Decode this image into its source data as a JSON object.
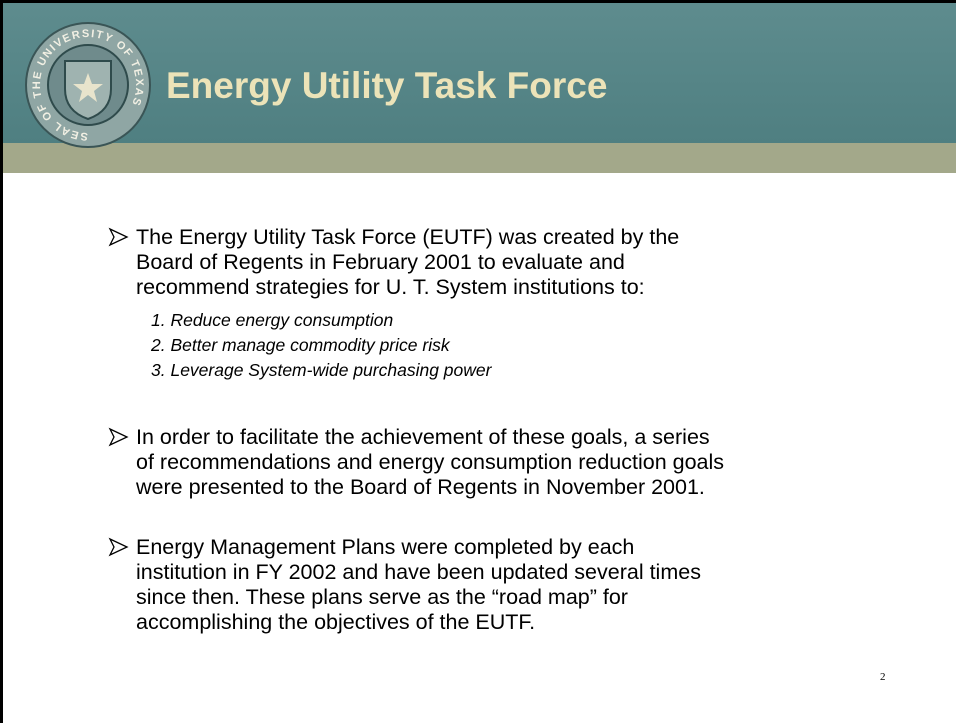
{
  "header": {
    "title": "Energy Utility Task Force",
    "seal_text": "SEAL OF THE UNIVERSITY OF TEXAS"
  },
  "bullets": [
    {
      "lines": [
        "The Energy Utility Task Force (EUTF) was created by the",
        "Board of Regents in February 2001 to evaluate and",
        "recommend strategies for U. T. System institutions to:"
      ],
      "items": [
        "1.  Reduce energy consumption",
        "2.  Better manage commodity price risk",
        "3.  Leverage System-wide purchasing power"
      ]
    },
    {
      "lines": [
        "In order to facilitate the achievement of these goals, a series",
        "of recommendations and energy consumption reduction goals",
        "were presented to the Board of Regents in November 2001."
      ]
    },
    {
      "lines": [
        "Energy Management Plans were completed by each",
        "institution in FY 2002 and have been updated several times",
        "since then.  These plans serve as the “road map” for",
        "accomplishing the objectives of the EUTF."
      ]
    }
  ],
  "page_number": "2"
}
